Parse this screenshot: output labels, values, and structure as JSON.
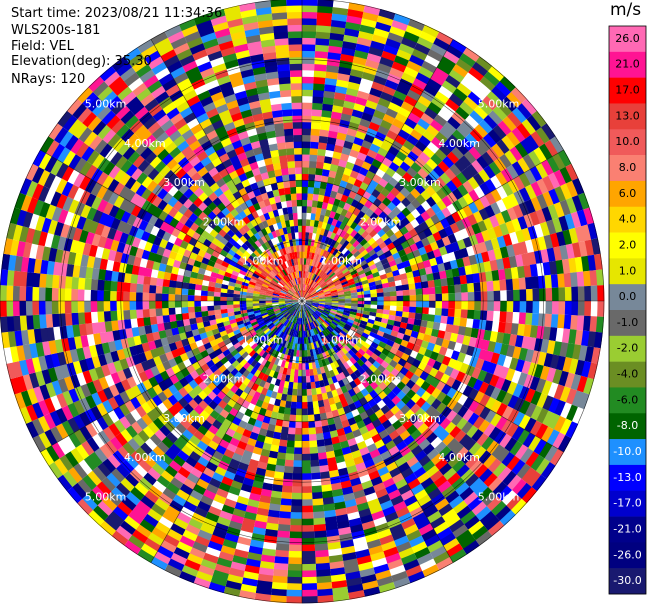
{
  "header": {
    "start_time": "Start time: 2023/08/21 11:34:36",
    "instrument": "WLS200s-181",
    "field": "Field: VEL",
    "elevation": "Elevation(deg): 35.30",
    "nrays": "NRays: 120"
  },
  "colorbar": {
    "unit": "m/s",
    "colors_top_to_bottom": [
      "#ff69b4",
      "#ff1493",
      "#ff0000",
      "#e8403a",
      "#f05a5a",
      "#fa8072",
      "#ffa500",
      "#ffd700",
      "#ffff00",
      "#e6e600",
      "#778899",
      "#696969",
      "#9acd32",
      "#6b8e23",
      "#228b22",
      "#006400",
      "#1e90ff",
      "#0000ff",
      "#0000cd",
      "#00008b",
      "#000080",
      "#191970"
    ]
  },
  "chart_data": {
    "type": "heatmap",
    "projection": "polar PPI",
    "field": "VEL",
    "units": "m/s",
    "nrays": 120,
    "range_rings_km": [
      "1.00km",
      "2.00km",
      "3.00km",
      "4.00km",
      "5.00km"
    ],
    "colorbar_ticks": [
      "26.0",
      "21.0",
      "17.0",
      "13.0",
      "10.0",
      "8.0",
      "6.0",
      "4.0",
      "2.0",
      "1.0",
      "0.0",
      "-1.0",
      "-2.0",
      "-4.0",
      "-6.0",
      "-8.0",
      "-10.0",
      "-13.0",
      "-17.0",
      "-21.0",
      "-26.0",
      "-30.0"
    ],
    "vmin": -30.0,
    "vmax": 26.0,
    "near_range_pattern": "northern half positive (red/orange), southern half negative (blue/green); outer gates noisy",
    "grid": true
  }
}
